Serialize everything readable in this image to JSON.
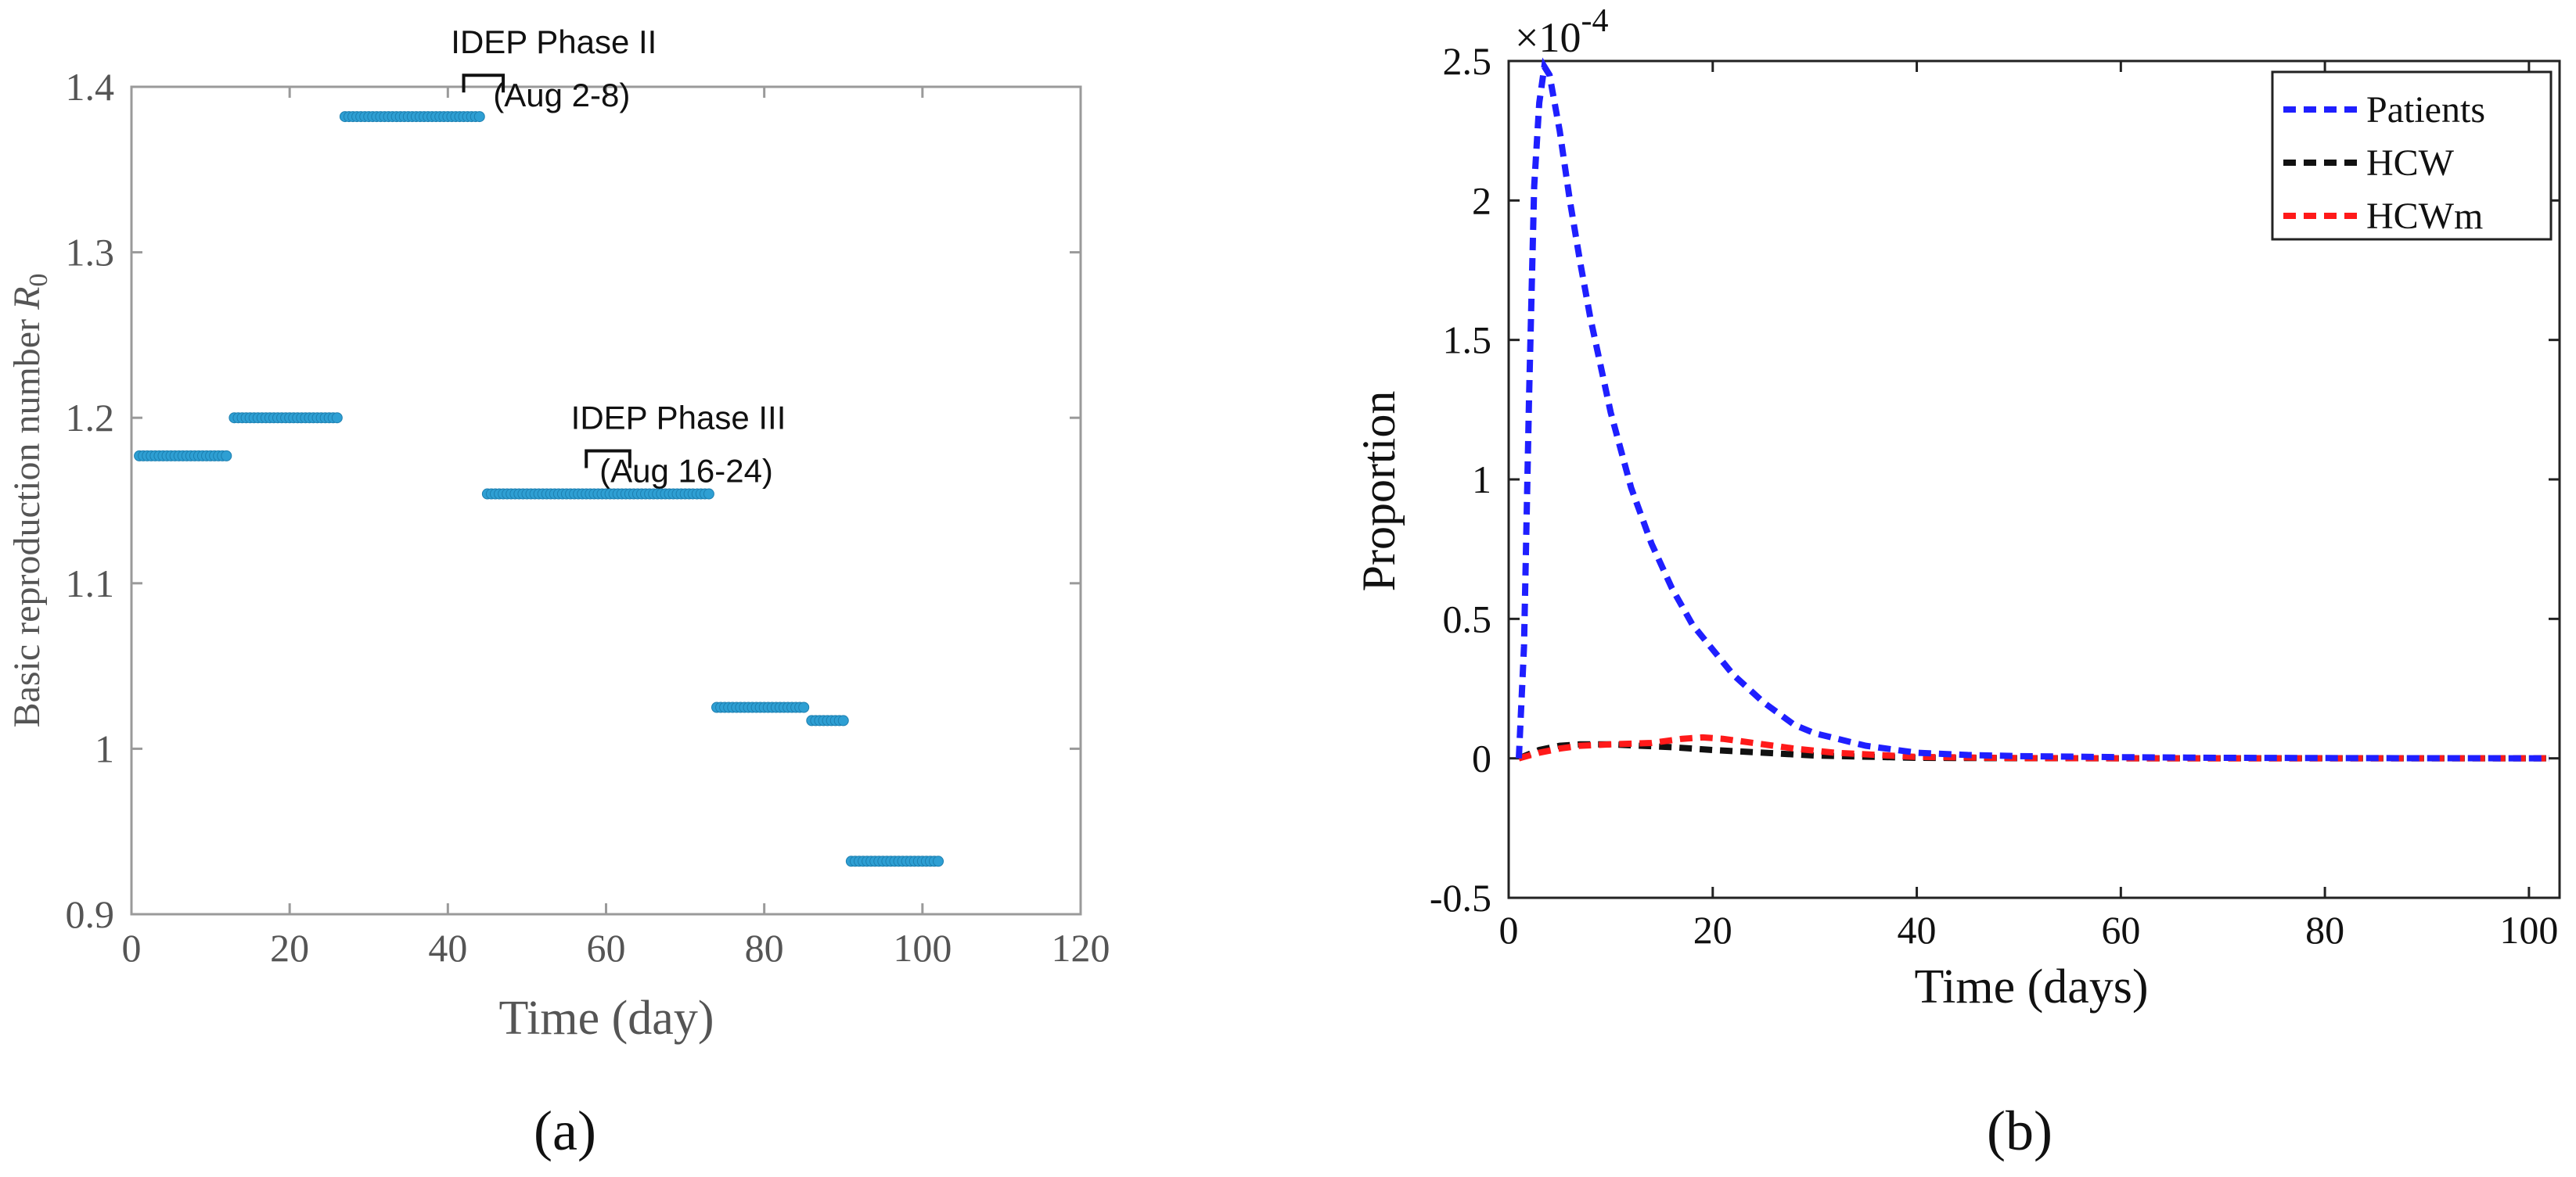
{
  "figure": {
    "panel_a_label": "(a)",
    "panel_b_label": "(b)"
  },
  "chart_data": [
    {
      "panel": "a",
      "type": "scatter",
      "title": "",
      "xlabel": "Time (day)",
      "ylabel": "Basic reproduction number R0",
      "xlim": [
        0,
        120
      ],
      "ylim": [
        0.9,
        1.4
      ],
      "xticks": [
        0,
        20,
        40,
        60,
        80,
        100,
        120
      ],
      "yticks": [
        0.9,
        1,
        1.1,
        1.2,
        1.3,
        1.4
      ],
      "xtick_labels": [
        "0",
        "20",
        "40",
        "60",
        "80",
        "100",
        "120"
      ],
      "ytick_labels": [
        "0.9",
        "1",
        "1.1",
        "1.2",
        "1.3",
        "1.4"
      ],
      "grid": false,
      "marker_color": "#2e9fd3",
      "series": [
        {
          "name": "R0",
          "segments": [
            {
              "x_start": 1,
              "x_end": 12,
              "value": 1.177
            },
            {
              "x_start": 13,
              "x_end": 26,
              "value": 1.2
            },
            {
              "x_start": 27,
              "x_end": 44,
              "value": 1.382
            },
            {
              "x_start": 45,
              "x_end": 73,
              "value": 1.154
            },
            {
              "x_start": 74,
              "x_end": 85,
              "value": 1.025
            },
            {
              "x_start": 86,
              "x_end": 90,
              "value": 1.017
            },
            {
              "x_start": 91,
              "x_end": 102,
              "value": 0.932
            }
          ]
        }
      ],
      "annotations": [
        {
          "title": "IDEP Phase II",
          "dates": "(Aug 2-8)",
          "x_start": 42,
          "x_end": 47,
          "y": 1.407
        },
        {
          "title": "IDEP Phase III",
          "dates": "(Aug 16-24)",
          "x_start": 57.5,
          "x_end": 63,
          "y": 1.18
        }
      ]
    },
    {
      "panel": "b",
      "type": "line",
      "title": "",
      "xlabel": "Time (days)",
      "ylabel": "Proportion",
      "xlim": [
        0,
        103
      ],
      "ylim": [
        -0.5,
        2.5
      ],
      "xticks": [
        0,
        20,
        40,
        60,
        80,
        100
      ],
      "yticks": [
        -0.5,
        0,
        0.5,
        1,
        1.5,
        2,
        2.5
      ],
      "xtick_labels": [
        "0",
        "20",
        "40",
        "60",
        "80",
        "100"
      ],
      "ytick_labels": [
        "-0.5",
        "0",
        "0.5",
        "1",
        "1.5",
        "2",
        "2.5"
      ],
      "y_scale_base": "×10",
      "y_scale_exponent": "-4",
      "grid": false,
      "legend_position": "top-right",
      "line_style": "dashed",
      "series": [
        {
          "name": "Patients",
          "color": "#1f1fff",
          "x": [
            1,
            1.5,
            2,
            2.5,
            3,
            3.5,
            4,
            5,
            6,
            7,
            8,
            10,
            12,
            14,
            16,
            18,
            20,
            22,
            25,
            28,
            30,
            35,
            40,
            45,
            50,
            60,
            70,
            80,
            90,
            100,
            102
          ],
          "values": [
            0,
            0.4,
            1.3,
            2.05,
            2.35,
            2.48,
            2.45,
            2.25,
            2.0,
            1.78,
            1.58,
            1.24,
            0.97,
            0.77,
            0.61,
            0.48,
            0.39,
            0.3,
            0.2,
            0.12,
            0.09,
            0.045,
            0.02,
            0.012,
            0.008,
            0.004,
            0.002,
            0.001,
            0.0005,
            0.0002,
            0.0002
          ]
        },
        {
          "name": "HCW",
          "color": "#111111",
          "x": [
            1,
            3,
            5,
            7,
            10,
            13,
            16,
            20,
            25,
            30,
            40,
            50,
            60,
            80,
            100,
            102
          ],
          "values": [
            0,
            0.03,
            0.045,
            0.05,
            0.05,
            0.045,
            0.04,
            0.03,
            0.02,
            0.01,
            0.002,
            0.0005,
            0.0002,
            0.0001,
            0.0001,
            0.0001
          ]
        },
        {
          "name": "HCWm",
          "color": "#ff1a1a",
          "x": [
            1,
            3,
            5,
            7,
            10,
            14,
            17,
            19,
            21,
            24,
            28,
            32,
            40,
            50,
            60,
            80,
            100,
            102
          ],
          "values": [
            0,
            0.02,
            0.035,
            0.045,
            0.05,
            0.055,
            0.07,
            0.075,
            0.07,
            0.055,
            0.035,
            0.02,
            0.005,
            0.001,
            0.0002,
            0.0001,
            0.0001,
            0.0001
          ]
        }
      ]
    }
  ]
}
